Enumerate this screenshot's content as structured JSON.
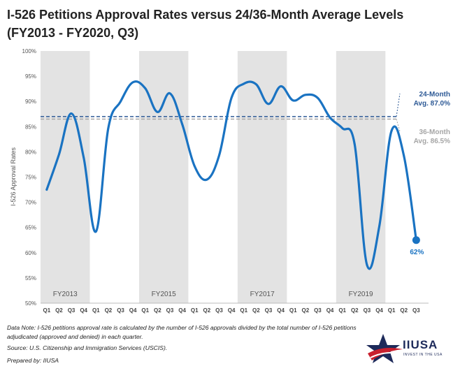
{
  "title_line1": "I-526 Petitions Approval Rates versus 24/36-Month Average Levels",
  "title_line2": "(FY2013 - FY2020, Q3)",
  "chart_data": {
    "type": "line",
    "title": "I-526 Petitions Approval Rates versus 24/36-Month Average Levels (FY2013 - FY2020, Q3)",
    "ylabel": "I-526 Approval Rates",
    "xlabel": "",
    "ylim": [
      50,
      100
    ],
    "y_ticks": [
      "100%",
      "95%",
      "90%",
      "85%",
      "80%",
      "75%",
      "70%",
      "65%",
      "60%",
      "55%",
      "50%"
    ],
    "y_tick_values": [
      100,
      95,
      90,
      85,
      80,
      75,
      70,
      65,
      60,
      55,
      50
    ],
    "categories": [
      "Q1",
      "Q2",
      "Q3",
      "Q4",
      "Q1",
      "Q2",
      "Q3",
      "Q4",
      "Q1",
      "Q2",
      "Q3",
      "Q4",
      "Q1",
      "Q2",
      "Q3",
      "Q4",
      "Q1",
      "Q2",
      "Q3",
      "Q4",
      "Q1",
      "Q2",
      "Q3",
      "Q4",
      "Q1",
      "Q2",
      "Q3",
      "Q4",
      "Q1",
      "Q2",
      "Q3"
    ],
    "fiscal_year_labels": [
      {
        "label": "FY2013",
        "start": 0
      },
      {
        "label": "FY2015",
        "start": 8
      },
      {
        "label": "FY2017",
        "start": 16
      },
      {
        "label": "FY2019",
        "start": 24
      }
    ],
    "series": [
      {
        "name": "I-526 Approval Rate",
        "color": "#1a73c2",
        "values": [
          72.5,
          79.5,
          87.6,
          78.9,
          64.2,
          84.7,
          90.0,
          93.8,
          92.6,
          87.9,
          91.6,
          85.5,
          77.2,
          74.5,
          79.3,
          90.7,
          93.5,
          93.4,
          89.5,
          93.0,
          90.2,
          91.3,
          90.7,
          86.8,
          84.7,
          81.5,
          57.6,
          65.2,
          84.2,
          79.2,
          62.5
        ]
      }
    ],
    "reference_lines": [
      {
        "name": "24-Month Avg.",
        "value": 87.0,
        "label_line1": "24-Month",
        "label_line2": "Avg. 87.0%",
        "color": "#2e5a96"
      },
      {
        "name": "36-Month Avg.",
        "value": 86.5,
        "label_line1": "36-Month",
        "label_line2": "Avg. 86.5%",
        "color": "#a6a6a6"
      }
    ],
    "end_label": "62%",
    "colors": {
      "band": "#e3e3e3",
      "axis_text": "#555555",
      "line": "#1a73c2"
    }
  },
  "notes": {
    "data_note_1": "Data Note: I-526 petitions approval rate is calculated by the number of I-526 approvals divided by the total number of I-526 petitions",
    "data_note_2": "adjudicated (approved and denied) in each quarter.",
    "source": "Source: U.S. Citizenship and Immigration Services (USCIS).",
    "prepared_by": "Prepared by: IIUSA"
  },
  "logo": {
    "brand": "IIUSA",
    "tagline": "INVEST IN THE USA"
  }
}
